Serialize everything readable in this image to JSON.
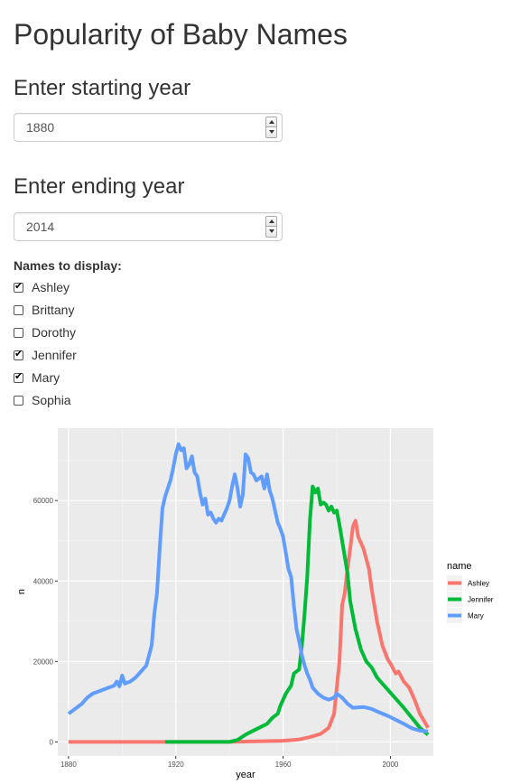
{
  "page": {
    "title": "Popularity of Baby Names"
  },
  "start": {
    "heading": "Enter starting year",
    "value": "1880"
  },
  "end": {
    "heading": "Enter ending year",
    "value": "2014"
  },
  "names": {
    "label": "Names to display:",
    "options": [
      {
        "label": "Ashley",
        "checked": true
      },
      {
        "label": "Brittany",
        "checked": false
      },
      {
        "label": "Dorothy",
        "checked": false
      },
      {
        "label": "Jennifer",
        "checked": true
      },
      {
        "label": "Mary",
        "checked": true
      },
      {
        "label": "Sophia",
        "checked": false
      }
    ]
  },
  "chart_data": {
    "type": "line",
    "title": "",
    "xlabel": "year",
    "ylabel": "n",
    "xlim": [
      1876,
      2016
    ],
    "ylim": [
      -3500,
      78000
    ],
    "x_ticks": [
      1880,
      1920,
      1960,
      2000
    ],
    "y_ticks": [
      0,
      20000,
      40000,
      60000
    ],
    "y_tick_labels": [
      "0",
      "20000",
      "40000",
      "60000"
    ],
    "grid": true,
    "legend": {
      "title": "name",
      "position": "right"
    },
    "series": [
      {
        "name": "Ashley",
        "color": "#F8766D",
        "points": [
          [
            1880,
            0
          ],
          [
            1900,
            0
          ],
          [
            1916,
            0
          ],
          [
            1940,
            0
          ],
          [
            1950,
            150
          ],
          [
            1960,
            300
          ],
          [
            1966,
            600
          ],
          [
            1970,
            1200
          ],
          [
            1974,
            2000
          ],
          [
            1977,
            3500
          ],
          [
            1979,
            7000
          ],
          [
            1981,
            20000
          ],
          [
            1982,
            34000
          ],
          [
            1983,
            37000
          ],
          [
            1984,
            43000
          ],
          [
            1985,
            48000
          ],
          [
            1986,
            53500
          ],
          [
            1987,
            55000
          ],
          [
            1988,
            51000
          ],
          [
            1990,
            48000
          ],
          [
            1992,
            43000
          ],
          [
            1993,
            38000
          ],
          [
            1995,
            30000
          ],
          [
            1997,
            24000
          ],
          [
            1999,
            20500
          ],
          [
            2000,
            19500
          ],
          [
            2002,
            17000
          ],
          [
            2003,
            17500
          ],
          [
            2005,
            15000
          ],
          [
            2007,
            13500
          ],
          [
            2009,
            10500
          ],
          [
            2011,
            7000
          ],
          [
            2014,
            3500
          ]
        ]
      },
      {
        "name": "Jennifer",
        "color": "#00BA38",
        "points": [
          [
            1916,
            0
          ],
          [
            1930,
            0
          ],
          [
            1940,
            0
          ],
          [
            1943,
            500
          ],
          [
            1946,
            1800
          ],
          [
            1948,
            2500
          ],
          [
            1951,
            3500
          ],
          [
            1954,
            4500
          ],
          [
            1956,
            6000
          ],
          [
            1958,
            7000
          ],
          [
            1959,
            9000
          ],
          [
            1961,
            12000
          ],
          [
            1963,
            14000
          ],
          [
            1964,
            17000
          ],
          [
            1966,
            18000
          ],
          [
            1967,
            24000
          ],
          [
            1968,
            32000
          ],
          [
            1969,
            41000
          ],
          [
            1970,
            55000
          ],
          [
            1971,
            63500
          ],
          [
            1972,
            62000
          ],
          [
            1973,
            63000
          ],
          [
            1974,
            59000
          ],
          [
            1975,
            59500
          ],
          [
            1976,
            59000
          ],
          [
            1977,
            57500
          ],
          [
            1978,
            58500
          ],
          [
            1979,
            57000
          ],
          [
            1980,
            57500
          ],
          [
            1981,
            54000
          ],
          [
            1982,
            50000
          ],
          [
            1983,
            46000
          ],
          [
            1984,
            42000
          ],
          [
            1985,
            35000
          ],
          [
            1987,
            28000
          ],
          [
            1989,
            23000
          ],
          [
            1991,
            20000
          ],
          [
            1993,
            18500
          ],
          [
            1995,
            16000
          ],
          [
            1997,
            14500
          ],
          [
            1999,
            13000
          ],
          [
            2001,
            11500
          ],
          [
            2003,
            10000
          ],
          [
            2005,
            8500
          ],
          [
            2007,
            6800
          ],
          [
            2009,
            5200
          ],
          [
            2011,
            3500
          ],
          [
            2014,
            1800
          ]
        ]
      },
      {
        "name": "Mary",
        "color": "#619CFF",
        "points": [
          [
            1880,
            7000
          ],
          [
            1883,
            8500
          ],
          [
            1885,
            9500
          ],
          [
            1887,
            11000
          ],
          [
            1889,
            12000
          ],
          [
            1891,
            12500
          ],
          [
            1893,
            13000
          ],
          [
            1895,
            13500
          ],
          [
            1897,
            14000
          ],
          [
            1898,
            15000
          ],
          [
            1899,
            13800
          ],
          [
            1900,
            16500
          ],
          [
            1901,
            14500
          ],
          [
            1903,
            15000
          ],
          [
            1905,
            16000
          ],
          [
            1907,
            17500
          ],
          [
            1909,
            19000
          ],
          [
            1911,
            24000
          ],
          [
            1912,
            32000
          ],
          [
            1913,
            37000
          ],
          [
            1914,
            48000
          ],
          [
            1915,
            58000
          ],
          [
            1916,
            61000
          ],
          [
            1918,
            65000
          ],
          [
            1919,
            68000
          ],
          [
            1920,
            71500
          ],
          [
            1921,
            74000
          ],
          [
            1922,
            72500
          ],
          [
            1923,
            73000
          ],
          [
            1924,
            68000
          ],
          [
            1925,
            69000
          ],
          [
            1926,
            71000
          ],
          [
            1927,
            67000
          ],
          [
            1928,
            66000
          ],
          [
            1929,
            62000
          ],
          [
            1930,
            59000
          ],
          [
            1931,
            60500
          ],
          [
            1932,
            56500
          ],
          [
            1933,
            57000
          ],
          [
            1934,
            55500
          ],
          [
            1935,
            54500
          ],
          [
            1936,
            55500
          ],
          [
            1937,
            55000
          ],
          [
            1938,
            56500
          ],
          [
            1939,
            58000
          ],
          [
            1940,
            60000
          ],
          [
            1941,
            63500
          ],
          [
            1942,
            66500
          ],
          [
            1943,
            63000
          ],
          [
            1944,
            58500
          ],
          [
            1945,
            61500
          ],
          [
            1946,
            71500
          ],
          [
            1947,
            70500
          ],
          [
            1948,
            67000
          ],
          [
            1949,
            66500
          ],
          [
            1950,
            65000
          ],
          [
            1951,
            65500
          ],
          [
            1952,
            66000
          ],
          [
            1953,
            63000
          ],
          [
            1954,
            66500
          ],
          [
            1955,
            62500
          ],
          [
            1956,
            60500
          ],
          [
            1957,
            57500
          ],
          [
            1958,
            54500
          ],
          [
            1959,
            53000
          ],
          [
            1960,
            51000
          ],
          [
            1961,
            47000
          ],
          [
            1962,
            43000
          ],
          [
            1963,
            41000
          ],
          [
            1964,
            34000
          ],
          [
            1965,
            28000
          ],
          [
            1966,
            25000
          ],
          [
            1967,
            21500
          ],
          [
            1968,
            19000
          ],
          [
            1969,
            17000
          ],
          [
            1970,
            15500
          ],
          [
            1971,
            13500
          ],
          [
            1973,
            12000
          ],
          [
            1975,
            11000
          ],
          [
            1977,
            10500
          ],
          [
            1979,
            11000
          ],
          [
            1980,
            12000
          ],
          [
            1982,
            11000
          ],
          [
            1984,
            9500
          ],
          [
            1986,
            8500
          ],
          [
            1990,
            8700
          ],
          [
            1993,
            8200
          ],
          [
            1996,
            7300
          ],
          [
            1999,
            6500
          ],
          [
            2002,
            5500
          ],
          [
            2005,
            4500
          ],
          [
            2008,
            3400
          ],
          [
            2011,
            2800
          ],
          [
            2014,
            2600
          ]
        ]
      }
    ]
  }
}
